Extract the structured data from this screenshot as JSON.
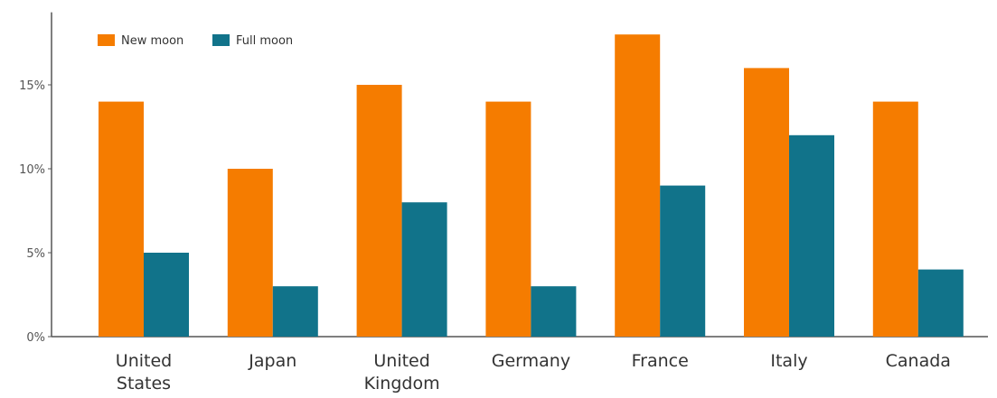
{
  "chart_data": {
    "type": "bar",
    "categories": [
      [
        "United",
        "States"
      ],
      [
        "Japan"
      ],
      [
        "United",
        "Kingdom"
      ],
      [
        "Germany"
      ],
      [
        "France"
      ],
      [
        "Italy"
      ],
      [
        "Canada"
      ]
    ],
    "series": [
      {
        "name": "New moon",
        "color": "#f57c00",
        "values": [
          14,
          10,
          15,
          14,
          18,
          16,
          14
        ]
      },
      {
        "name": "Full moon",
        "color": "#11738a",
        "values": [
          5,
          3,
          8,
          3,
          9,
          12,
          4
        ]
      }
    ],
    "yticks": [
      {
        "value": 0,
        "label": "0%"
      },
      {
        "value": 5,
        "label": "5%"
      },
      {
        "value": 10,
        "label": "10%"
      },
      {
        "value": 15,
        "label": "15%"
      }
    ],
    "ylim": [
      0,
      19
    ],
    "legend_position": "top-left",
    "grid": false,
    "axis_color": "#555555"
  }
}
